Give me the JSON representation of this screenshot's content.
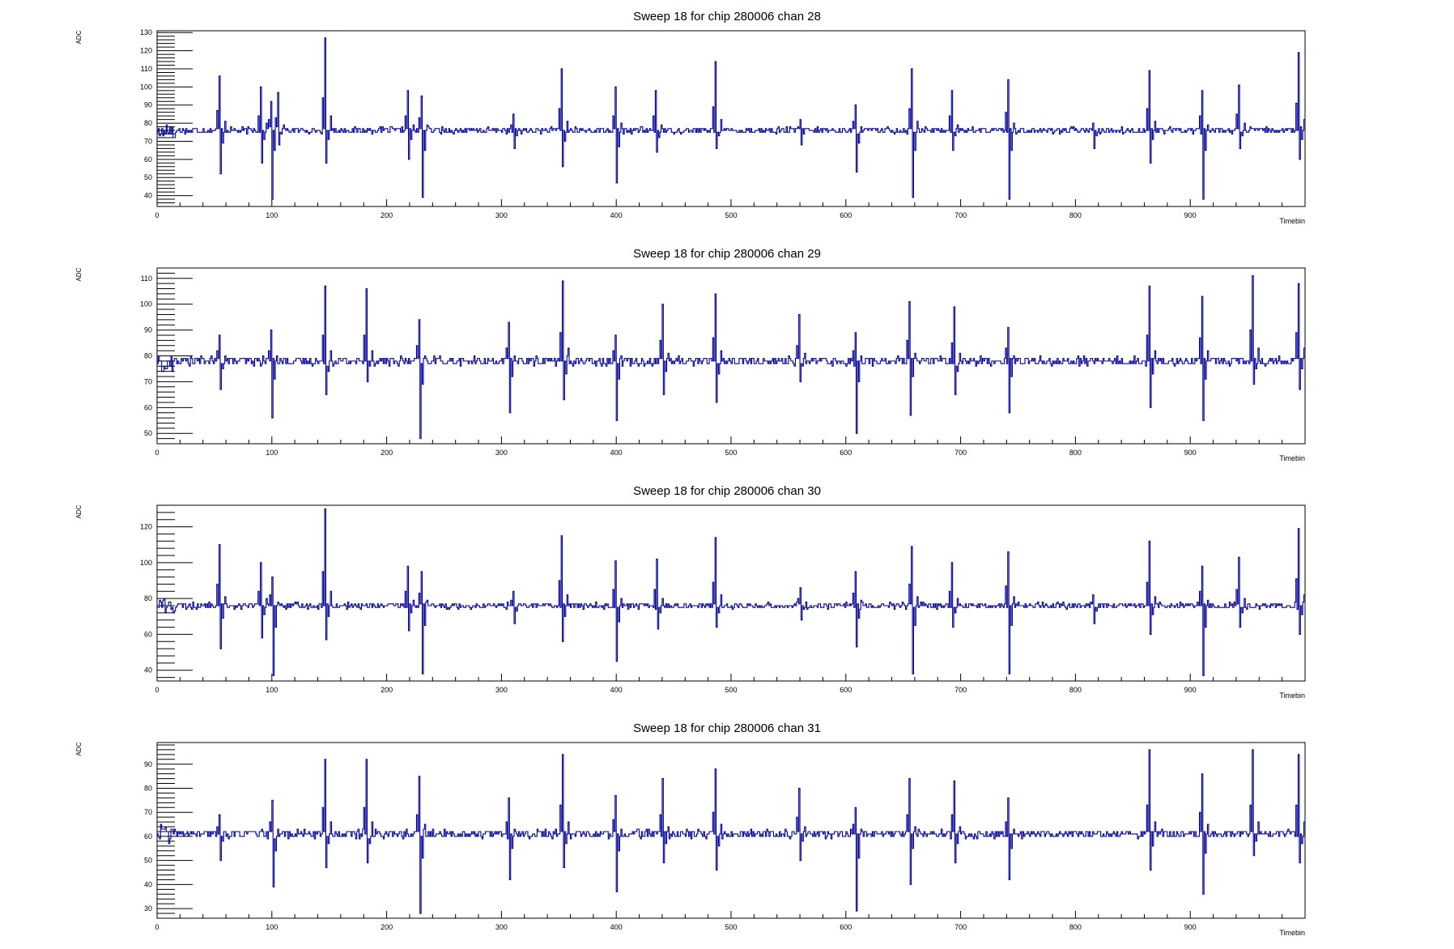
{
  "chart_data": [
    {
      "type": "line",
      "title": "Sweep 18 for chip 280006 chan 28",
      "xlabel": "Timebin",
      "ylabel": "ADC",
      "xlim": [
        0,
        1000
      ],
      "ylim": [
        34,
        131
      ],
      "xticks": [
        0,
        100,
        200,
        300,
        400,
        500,
        600,
        700,
        800,
        900
      ],
      "yticks": [
        40,
        50,
        60,
        70,
        80,
        90,
        100,
        110,
        120,
        130
      ],
      "grid": false,
      "baseline": 76,
      "series": [
        {
          "color": "#000099",
          "spikes": [
            [
              54,
              106,
              52
            ],
            [
              90,
              100,
              58
            ],
            [
              99,
              92,
              38
            ],
            [
              105,
              97,
              68
            ],
            [
              146,
              127,
              58
            ],
            [
              218,
              98,
              60
            ],
            [
              230,
              95,
              39
            ],
            [
              310,
              85,
              66
            ],
            [
              352,
              110,
              56
            ],
            [
              399,
              100,
              47
            ],
            [
              434,
              98,
              64
            ],
            [
              486,
              114,
              66
            ],
            [
              560,
              82,
              68
            ],
            [
              608,
              90,
              53
            ],
            [
              657,
              110,
              39
            ],
            [
              692,
              98,
              65
            ],
            [
              741,
              104,
              38
            ],
            [
              815,
              80,
              66
            ],
            [
              864,
              109,
              58
            ],
            [
              910,
              98,
              38
            ],
            [
              942,
              101,
              66
            ],
            [
              994,
              119,
              60
            ]
          ]
        }
      ]
    },
    {
      "type": "line",
      "title": "Sweep 18 for chip 280006 chan 29",
      "xlabel": "Timebin",
      "ylabel": "ADC",
      "xlim": [
        0,
        1000
      ],
      "ylim": [
        46,
        114
      ],
      "xticks": [
        0,
        100,
        200,
        300,
        400,
        500,
        600,
        700,
        800,
        900
      ],
      "yticks": [
        50,
        60,
        70,
        80,
        90,
        100,
        110
      ],
      "grid": false,
      "baseline": 78,
      "series": [
        {
          "color": "#000099",
          "spikes": [
            [
              54,
              88,
              67
            ],
            [
              99,
              90,
              56
            ],
            [
              146,
              107,
              65
            ],
            [
              182,
              106,
              70
            ],
            [
              228,
              94,
              48
            ],
            [
              306,
              93,
              58
            ],
            [
              353,
              109,
              63
            ],
            [
              399,
              88,
              55
            ],
            [
              440,
              100,
              65
            ],
            [
              486,
              104,
              62
            ],
            [
              559,
              96,
              70
            ],
            [
              608,
              89,
              50
            ],
            [
              655,
              101,
              57
            ],
            [
              694,
              99,
              65
            ],
            [
              741,
              91,
              58
            ],
            [
              864,
              107,
              60
            ],
            [
              910,
              103,
              55
            ],
            [
              954,
              111,
              69
            ],
            [
              994,
              108,
              67
            ]
          ]
        }
      ]
    },
    {
      "type": "line",
      "title": "Sweep 18 for chip 280006 chan 30",
      "xlabel": "Timebin",
      "ylabel": "ADC",
      "xlim": [
        0,
        1000
      ],
      "ylim": [
        34,
        132
      ],
      "xticks": [
        0,
        100,
        200,
        300,
        400,
        500,
        600,
        700,
        800,
        900
      ],
      "yticks": [
        40,
        60,
        80,
        100,
        120
      ],
      "grid": false,
      "baseline": 76,
      "series": [
        {
          "color": "#000099",
          "spikes": [
            [
              54,
              110,
              52
            ],
            [
              90,
              100,
              58
            ],
            [
              100,
              92,
              37
            ],
            [
              146,
              130,
              57
            ],
            [
              218,
              98,
              62
            ],
            [
              230,
              95,
              38
            ],
            [
              310,
              84,
              66
            ],
            [
              352,
              115,
              56
            ],
            [
              399,
              101,
              45
            ],
            [
              435,
              102,
              63
            ],
            [
              486,
              114,
              64
            ],
            [
              560,
              86,
              68
            ],
            [
              608,
              95,
              53
            ],
            [
              657,
              109,
              38
            ],
            [
              692,
              100,
              64
            ],
            [
              741,
              106,
              38
            ],
            [
              815,
              82,
              66
            ],
            [
              864,
              112,
              60
            ],
            [
              910,
              98,
              37
            ],
            [
              942,
              103,
              64
            ],
            [
              994,
              119,
              60
            ]
          ]
        }
      ]
    },
    {
      "type": "line",
      "title": "Sweep 18 for chip 280006 chan 31",
      "xlabel": "Timebin",
      "ylabel": "ADC",
      "xlim": [
        0,
        1000
      ],
      "ylim": [
        26,
        99
      ],
      "xticks": [
        0,
        100,
        200,
        300,
        400,
        500,
        600,
        700,
        800,
        900
      ],
      "yticks": [
        30,
        40,
        50,
        60,
        70,
        80,
        90
      ],
      "grid": false,
      "baseline": 61,
      "series": [
        {
          "color": "#000099",
          "spikes": [
            [
              54,
              69,
              50
            ],
            [
              100,
              75,
              39
            ],
            [
              146,
              92,
              47
            ],
            [
              182,
              92,
              49
            ],
            [
              228,
              85,
              28
            ],
            [
              306,
              76,
              42
            ],
            [
              353,
              94,
              47
            ],
            [
              399,
              77,
              37
            ],
            [
              440,
              84,
              49
            ],
            [
              486,
              88,
              46
            ],
            [
              559,
              80,
              50
            ],
            [
              608,
              72,
              29
            ],
            [
              655,
              84,
              40
            ],
            [
              694,
              83,
              49
            ],
            [
              741,
              76,
              42
            ],
            [
              864,
              96,
              46
            ],
            [
              910,
              86,
              36
            ],
            [
              954,
              96,
              52
            ],
            [
              994,
              94,
              49
            ]
          ]
        }
      ]
    }
  ]
}
